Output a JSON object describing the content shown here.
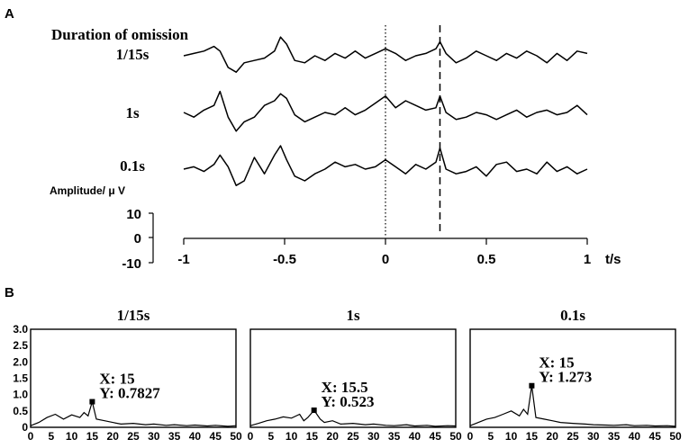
{
  "panel_labels": [
    "A",
    "B"
  ],
  "panelA": {
    "heading": "Duration of omission",
    "trace_labels": [
      "1/15s",
      "1s",
      "0.1s"
    ],
    "amplitude_label": "Amplitude/ μ V",
    "scale_ticks": [
      "10",
      "0",
      "-10"
    ],
    "x_axis_label": "t/s"
  },
  "chart_data": [
    {
      "type": "line",
      "panel": "A",
      "title": "Duration of omission",
      "xlabel": "t/s",
      "ylabel": "Amplitude/ μ V",
      "xlim": [
        -1,
        1
      ],
      "xticks": [
        -1,
        -0.5,
        0,
        0.5,
        1
      ],
      "xtick_labels": [
        "-1",
        "-0.5",
        "0",
        "0.5",
        "1"
      ],
      "scale_bar": {
        "ticks": [
          10,
          0,
          -10
        ],
        "unit": "μV"
      },
      "markers": [
        {
          "x": 0,
          "style": "dotted"
        },
        {
          "x": 0.27,
          "style": "dashed"
        }
      ],
      "series": [
        {
          "name": "1/15s",
          "x": [
            -1,
            -0.95,
            -0.9,
            -0.85,
            -0.82,
            -0.78,
            -0.74,
            -0.7,
            -0.65,
            -0.6,
            -0.55,
            -0.52,
            -0.49,
            -0.45,
            -0.4,
            -0.35,
            -0.3,
            -0.25,
            -0.2,
            -0.15,
            -0.1,
            -0.05,
            0,
            0.05,
            0.1,
            0.15,
            0.2,
            0.25,
            0.27,
            0.3,
            0.35,
            0.4,
            0.45,
            0.5,
            0.55,
            0.6,
            0.65,
            0.7,
            0.75,
            0.8,
            0.85,
            0.9,
            0.95,
            1
          ],
          "y": [
            0,
            1,
            2,
            4,
            2,
            -5,
            -7,
            -3,
            -2,
            -1,
            2,
            8,
            5,
            -2,
            -3,
            0,
            -2,
            1,
            -1,
            2,
            -1,
            1,
            3,
            1,
            -2,
            0,
            1,
            3,
            6,
            1,
            -3,
            -1,
            2,
            0,
            -2,
            1,
            -1,
            2,
            0,
            -3,
            1,
            -2,
            2,
            1
          ]
        },
        {
          "name": "1s",
          "x": [
            -1,
            -0.95,
            -0.9,
            -0.85,
            -0.82,
            -0.78,
            -0.74,
            -0.7,
            -0.65,
            -0.6,
            -0.55,
            -0.52,
            -0.49,
            -0.45,
            -0.4,
            -0.35,
            -0.3,
            -0.25,
            -0.2,
            -0.15,
            -0.1,
            -0.05,
            0,
            0.05,
            0.1,
            0.15,
            0.2,
            0.25,
            0.27,
            0.3,
            0.35,
            0.4,
            0.45,
            0.5,
            0.55,
            0.6,
            0.65,
            0.7,
            0.75,
            0.8,
            0.85,
            0.9,
            0.95,
            1
          ],
          "y": [
            0,
            -2,
            1,
            3,
            9,
            -2,
            -8,
            -4,
            -2,
            3,
            5,
            8,
            6,
            -1,
            -4,
            -2,
            0,
            -1,
            2,
            -1,
            1,
            4,
            7,
            2,
            5,
            3,
            1,
            2,
            7,
            0,
            -3,
            -2,
            0,
            -1,
            -3,
            -1,
            1,
            -2,
            0,
            1,
            -1,
            0,
            3,
            -1
          ]
        },
        {
          "name": "0.1s",
          "x": [
            -1,
            -0.95,
            -0.9,
            -0.85,
            -0.82,
            -0.78,
            -0.74,
            -0.7,
            -0.65,
            -0.6,
            -0.55,
            -0.52,
            -0.49,
            -0.45,
            -0.4,
            -0.35,
            -0.3,
            -0.25,
            -0.2,
            -0.15,
            -0.1,
            -0.05,
            0,
            0.05,
            0.1,
            0.15,
            0.2,
            0.25,
            0.27,
            0.3,
            0.35,
            0.4,
            0.45,
            0.5,
            0.55,
            0.6,
            0.65,
            0.7,
            0.75,
            0.8,
            0.85,
            0.9,
            0.95,
            1
          ],
          "y": [
            0,
            1,
            -1,
            2,
            6,
            1,
            -7,
            -5,
            5,
            -2,
            6,
            10,
            4,
            -3,
            -5,
            -2,
            0,
            3,
            1,
            2,
            0,
            1,
            4,
            1,
            -2,
            2,
            0,
            3,
            9,
            0,
            -2,
            -1,
            1,
            -3,
            2,
            3,
            -1,
            0,
            -2,
            3,
            -1,
            1,
            -2,
            0
          ]
        }
      ]
    },
    {
      "type": "line",
      "panel": "B",
      "title": "1/15s",
      "xlim": [
        0,
        50
      ],
      "ylim": [
        0,
        3.0
      ],
      "xticks": [
        0,
        5,
        10,
        15,
        20,
        25,
        30,
        35,
        40,
        45,
        50
      ],
      "yticks": [
        0,
        0.5,
        1.0,
        1.5,
        2.0,
        2.5,
        3.0
      ],
      "ytick_labels": [
        "0",
        "0.5",
        "1.0",
        "1.5",
        "2.0",
        "2.5",
        "3.0"
      ],
      "x": [
        0,
        2,
        4,
        6,
        8,
        10,
        12,
        13,
        14,
        15,
        16,
        18,
        20,
        22,
        25,
        28,
        30,
        33,
        35,
        38,
        40,
        43,
        45,
        48,
        50
      ],
      "y": [
        0.05,
        0.15,
        0.3,
        0.4,
        0.25,
        0.38,
        0.3,
        0.45,
        0.35,
        0.7827,
        0.25,
        0.2,
        0.15,
        0.1,
        0.12,
        0.08,
        0.1,
        0.06,
        0.08,
        0.05,
        0.07,
        0.04,
        0.06,
        0.03,
        0.05
      ],
      "annotation": {
        "x_text": "X: 15",
        "y_text": "Y: 0.7827",
        "point": [
          15,
          0.7827
        ]
      }
    },
    {
      "type": "line",
      "panel": "B",
      "title": "1s",
      "xlim": [
        0,
        50
      ],
      "ylim": [
        0,
        3.0
      ],
      "xticks": [
        0,
        5,
        10,
        15,
        20,
        25,
        30,
        35,
        40,
        45,
        50
      ],
      "x": [
        0,
        2,
        4,
        6,
        8,
        10,
        12,
        13,
        14,
        15.5,
        17,
        18,
        20,
        22,
        25,
        28,
        30,
        33,
        35,
        38,
        40,
        43,
        45,
        48,
        50
      ],
      "y": [
        0.05,
        0.12,
        0.2,
        0.25,
        0.32,
        0.28,
        0.4,
        0.2,
        0.3,
        0.523,
        0.25,
        0.15,
        0.2,
        0.1,
        0.12,
        0.08,
        0.1,
        0.06,
        0.05,
        0.08,
        0.04,
        0.06,
        0.03,
        0.05,
        0.04
      ],
      "annotation": {
        "x_text": "X: 15.5",
        "y_text": "Y: 0.523",
        "point": [
          15.5,
          0.523
        ]
      }
    },
    {
      "type": "line",
      "panel": "B",
      "title": "0.1s",
      "xlim": [
        0,
        50
      ],
      "ylim": [
        0,
        3.0
      ],
      "xticks": [
        0,
        5,
        10,
        15,
        20,
        25,
        30,
        35,
        40,
        45,
        50
      ],
      "x": [
        0,
        2,
        4,
        6,
        8,
        10,
        12,
        13,
        14,
        15,
        16,
        18,
        20,
        22,
        25,
        28,
        30,
        33,
        35,
        38,
        40,
        43,
        45,
        48,
        50
      ],
      "y": [
        0.05,
        0.15,
        0.25,
        0.3,
        0.4,
        0.5,
        0.35,
        0.55,
        0.4,
        1.273,
        0.3,
        0.25,
        0.2,
        0.15,
        0.12,
        0.1,
        0.08,
        0.07,
        0.06,
        0.08,
        0.05,
        0.06,
        0.04,
        0.05,
        0.03
      ],
      "annotation": {
        "x_text": "X: 15",
        "y_text": "Y: 1.273",
        "point": [
          15,
          1.273
        ]
      }
    }
  ]
}
